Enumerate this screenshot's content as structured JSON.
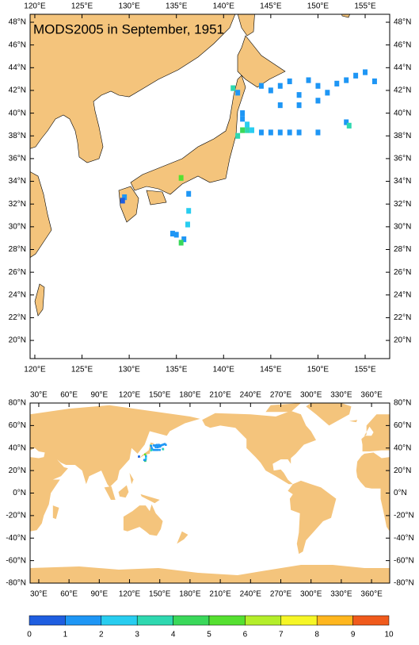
{
  "title": "MODS2005 in September, 1951",
  "regional_map": {
    "xlim": [
      119.5,
      157.6
    ],
    "ylim": [
      18.4,
      48.7
    ],
    "xticks": [
      {
        "value": 120,
        "label": "120°E"
      },
      {
        "value": 125,
        "label": "125°E"
      },
      {
        "value": 130,
        "label": "130°E"
      },
      {
        "value": 135,
        "label": "135°E"
      },
      {
        "value": 140,
        "label": "140°E"
      },
      {
        "value": 145,
        "label": "145°E"
      },
      {
        "value": 150,
        "label": "150°E"
      },
      {
        "value": 155,
        "label": "155°E"
      }
    ],
    "yticks": [
      {
        "value": 20,
        "label": "20°N"
      },
      {
        "value": 22,
        "label": "22°N"
      },
      {
        "value": 24,
        "label": "24°N"
      },
      {
        "value": 26,
        "label": "26°N"
      },
      {
        "value": 28,
        "label": "28°N"
      },
      {
        "value": 30,
        "label": "30°N"
      },
      {
        "value": 32,
        "label": "32°N"
      },
      {
        "value": 34,
        "label": "34°N"
      },
      {
        "value": 36,
        "label": "36°N"
      },
      {
        "value": 38,
        "label": "38°N"
      },
      {
        "value": 40,
        "label": "40°N"
      },
      {
        "value": 42,
        "label": "42°N"
      },
      {
        "value": 44,
        "label": "44°N"
      },
      {
        "value": 46,
        "label": "46°N"
      },
      {
        "value": 48,
        "label": "48°N"
      }
    ]
  },
  "global_map": {
    "xlim": [
      21.4,
      378
    ],
    "ylim": [
      -80,
      80
    ],
    "xticks": [
      {
        "value": 30,
        "label": "30°E"
      },
      {
        "value": 60,
        "label": "60°E"
      },
      {
        "value": 90,
        "label": "90°E"
      },
      {
        "value": 120,
        "label": "120°E"
      },
      {
        "value": 150,
        "label": "150°E"
      },
      {
        "value": 180,
        "label": "180°E"
      },
      {
        "value": 210,
        "label": "210°E"
      },
      {
        "value": 240,
        "label": "240°E"
      },
      {
        "value": 270,
        "label": "270°E"
      },
      {
        "value": 300,
        "label": "300°E"
      },
      {
        "value": 330,
        "label": "330°E"
      },
      {
        "value": 360,
        "label": "360°E"
      }
    ],
    "yticks": [
      {
        "value": -80,
        "label": "-80°N"
      },
      {
        "value": -60,
        "label": "-60°N"
      },
      {
        "value": -40,
        "label": "-40°N"
      },
      {
        "value": -20,
        "label": "-20°N"
      },
      {
        "value": 0,
        "label": "0°N"
      },
      {
        "value": 20,
        "label": "20°N"
      },
      {
        "value": 40,
        "label": "40°N"
      },
      {
        "value": 60,
        "label": "60°N"
      },
      {
        "value": 80,
        "label": "80°N"
      }
    ]
  },
  "observations": {
    "lon": [
      142.5,
      142,
      142.5,
      143,
      142,
      141.5,
      142,
      144,
      145,
      146,
      147,
      148,
      150,
      153,
      153.3,
      141,
      141.5,
      144,
      145,
      146,
      147,
      148,
      149,
      150,
      151,
      152,
      153,
      154,
      155,
      156,
      146,
      148,
      150,
      136.3,
      136.3,
      136.2,
      135.8,
      135.5,
      135,
      134.6,
      129.5,
      129.3,
      135.5
    ],
    "lat": [
      38.5,
      38.5,
      39,
      38.5,
      39.5,
      38,
      40,
      38.3,
      38.3,
      38.3,
      38.3,
      38.3,
      38.3,
      39.2,
      38.9,
      42.2,
      41.8,
      42.4,
      42,
      42.4,
      42.8,
      41.6,
      42.9,
      42.4,
      41.8,
      42.6,
      42.9,
      43.3,
      43.6,
      42.8,
      40.7,
      40.7,
      41.1,
      32.9,
      31.4,
      30.2,
      28.9,
      28.6,
      29.3,
      29.4,
      32.6,
      32.3,
      34.3
    ],
    "values": [
      3.5,
      4.5,
      2.5,
      2.5,
      1.5,
      3.5,
      1.5,
      1.5,
      1.5,
      1.5,
      1.5,
      1.5,
      1.5,
      1.5,
      3.5,
      3.5,
      1.5,
      1.5,
      1.5,
      1.5,
      1.5,
      1.5,
      1.5,
      1.5,
      1.5,
      1.5,
      1.5,
      1.5,
      1.5,
      1.5,
      1.5,
      1.5,
      1.5,
      1.5,
      2.5,
      2.5,
      1.5,
      4.5,
      1.5,
      1.5,
      1.5,
      0.5,
      5.5
    ]
  },
  "colorbar": {
    "levels": [
      0,
      1,
      2,
      3,
      4,
      5,
      6,
      7,
      8,
      9,
      10
    ],
    "colors": [
      "#1f5ee0",
      "#1e96f5",
      "#28cdf0",
      "#2ed8b0",
      "#3ad85a",
      "#55e030",
      "#b4ee2a",
      "#f6f626",
      "#ffb61e",
      "#f05a1c"
    ]
  }
}
